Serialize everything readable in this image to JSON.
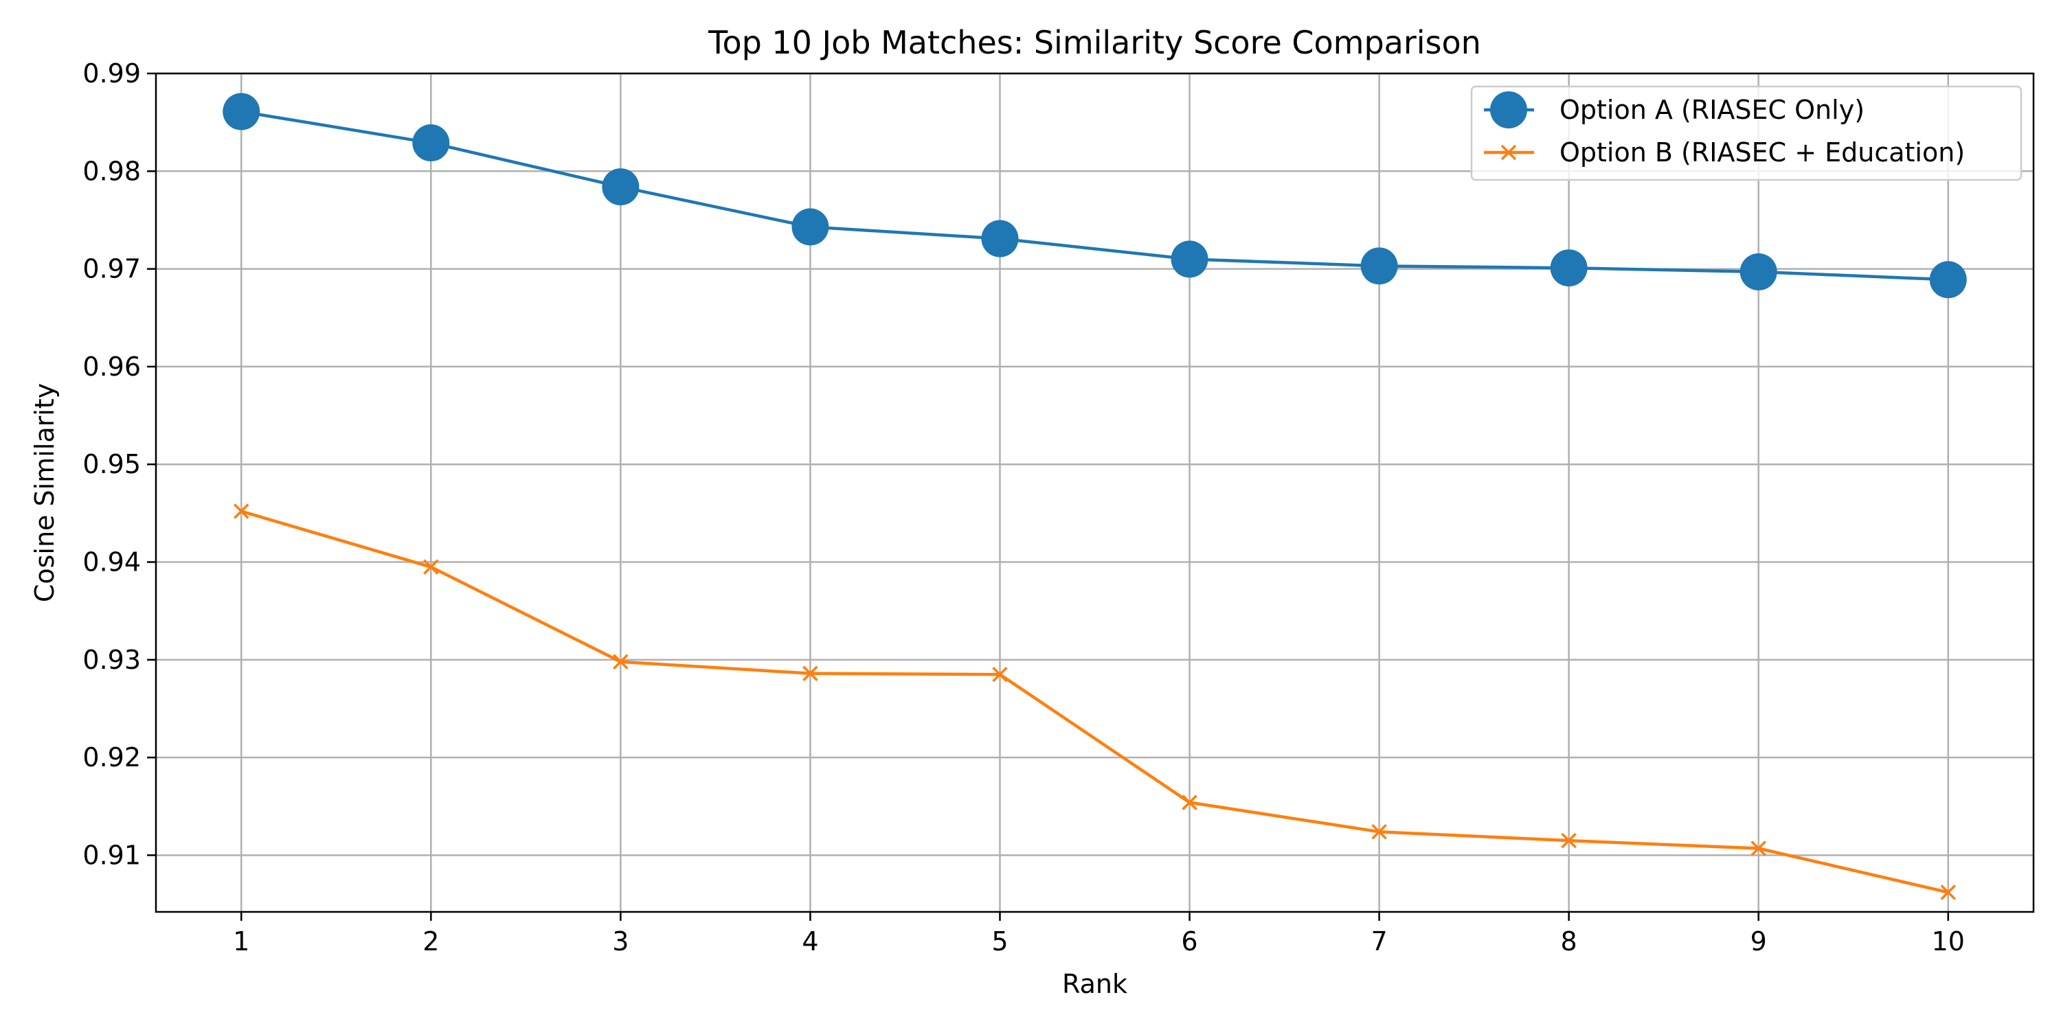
{
  "chart_data": {
    "type": "line",
    "title": "Top 10 Job Matches: Similarity Score Comparison",
    "xlabel": "Rank",
    "ylabel": "Cosine Similarity",
    "x": [
      1,
      2,
      3,
      4,
      5,
      6,
      7,
      8,
      9,
      10
    ],
    "xlim": [
      0.55,
      10.45
    ],
    "ylim": [
      0.9042,
      0.99
    ],
    "xticks": [
      1,
      2,
      3,
      4,
      5,
      6,
      7,
      8,
      9,
      10
    ],
    "yticks": [
      0.91,
      0.92,
      0.93,
      0.94,
      0.95,
      0.96,
      0.97,
      0.98,
      0.99
    ],
    "ytick_labels": [
      "0.91",
      "0.92",
      "0.93",
      "0.94",
      "0.95",
      "0.96",
      "0.97",
      "0.98",
      "0.99"
    ],
    "grid": true,
    "legend_position": "top-right",
    "series": [
      {
        "name": "Option A (RIASEC Only)",
        "color": "#1f77b4",
        "marker": "circle",
        "values": [
          0.9861,
          0.9829,
          0.9784,
          0.9743,
          0.9731,
          0.971,
          0.9703,
          0.9701,
          0.9697,
          0.9689
        ]
      },
      {
        "name": "Option B (RIASEC + Education)",
        "color": "#ff7f0e",
        "marker": "x",
        "values": [
          0.9452,
          0.9395,
          0.9298,
          0.9286,
          0.9285,
          0.9154,
          0.9124,
          0.9115,
          0.9107,
          0.9062
        ]
      }
    ]
  }
}
